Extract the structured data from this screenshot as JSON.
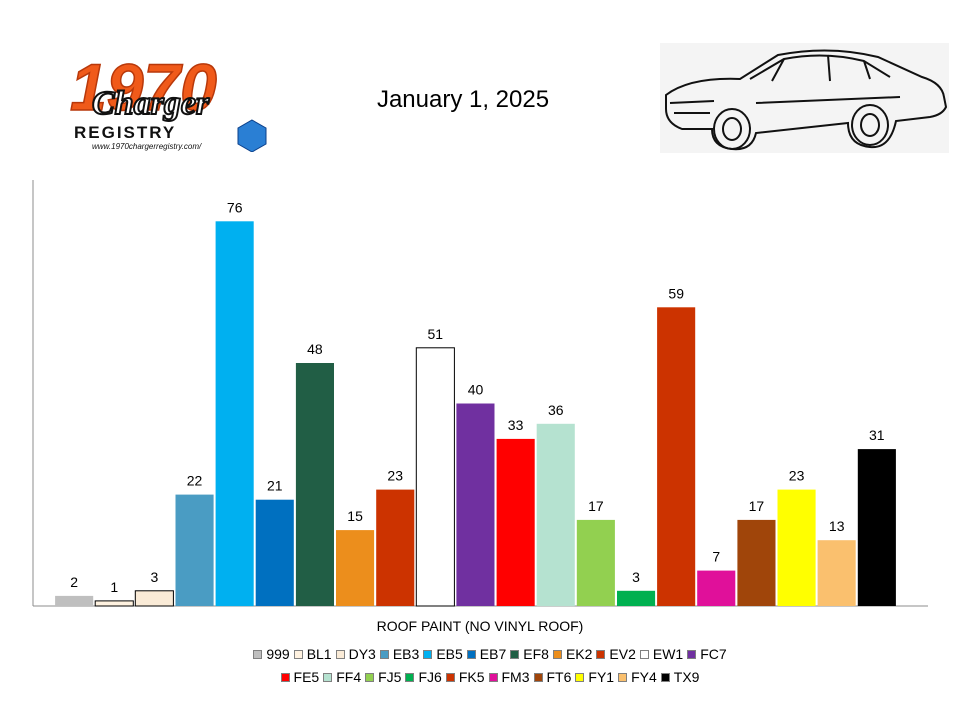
{
  "header": {
    "title": "January 1, 2025",
    "logo_text": "1970",
    "logo_script": "Charger",
    "logo_subtitle": "REGISTRY",
    "logo_url": "www.1970chargerregistry.com/"
  },
  "chart_data": {
    "type": "bar",
    "title": "January 1, 2025",
    "xlabel": "ROOF PAINT (NO VINYL ROOF)",
    "ylabel": "",
    "ylim": [
      0,
      80
    ],
    "grid": false,
    "legend_position": "bottom",
    "categories": [
      "999",
      "BL1",
      "DY3",
      "EB3",
      "EB5",
      "EB7",
      "EF8",
      "EK2",
      "EV2",
      "EW1",
      "FC7",
      "FE5",
      "FF4",
      "FJ5",
      "FJ6",
      "FK5",
      "FM3",
      "FT6",
      "FY1",
      "FY4",
      "TX9"
    ],
    "values": [
      2,
      1,
      3,
      22,
      76,
      21,
      48,
      15,
      23,
      51,
      40,
      33,
      36,
      17,
      3,
      59,
      7,
      17,
      23,
      13,
      31
    ],
    "colors": [
      "#bfbfbf",
      "#fff2e0",
      "#faebd7",
      "#4a9cc3",
      "#00b0f0",
      "#0070c0",
      "#215e45",
      "#ec8e1c",
      "#cc3300",
      "#ffffff",
      "#7030a0",
      "#ff0000",
      "#b5e2d0",
      "#92d050",
      "#00b050",
      "#cc3300",
      "#e0109a",
      "#a0450a",
      "#ffff00",
      "#fac06e",
      "#000000"
    ]
  }
}
